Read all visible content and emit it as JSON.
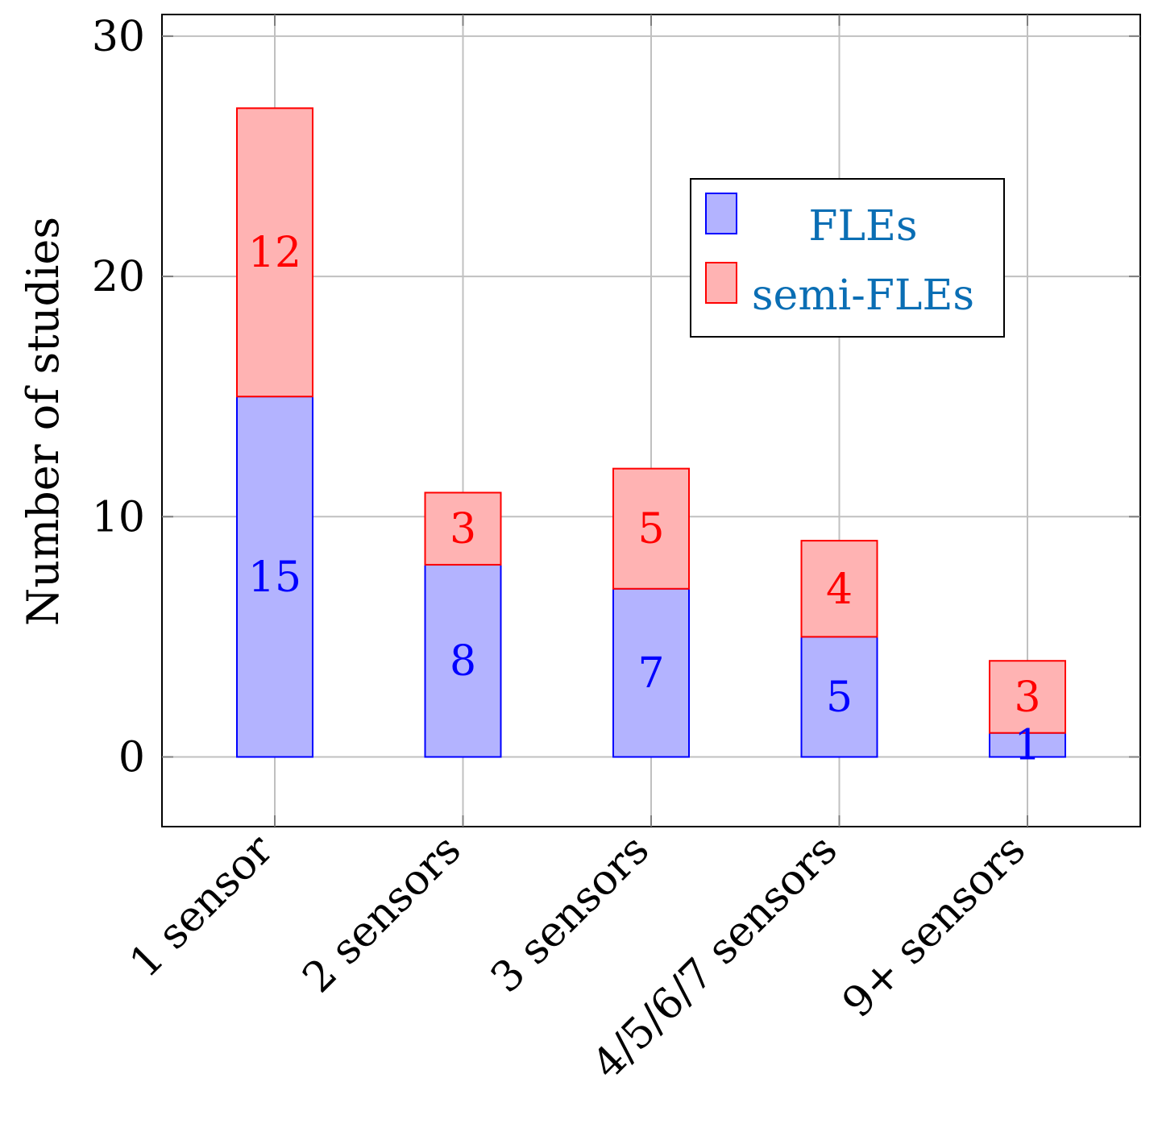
{
  "chart_data": {
    "type": "bar",
    "stacked": true,
    "categories": [
      "1 sensor",
      "2 sensors",
      "3 sensors",
      "4/5/6/7 sensors",
      "9+ sensors"
    ],
    "series": [
      {
        "name": "FLEs",
        "values": [
          15,
          8,
          7,
          5,
          1
        ],
        "fill": "#b3b3ff",
        "stroke": "#0000ff",
        "label_color": "#0000ff"
      },
      {
        "name": "semi-FLEs",
        "values": [
          12,
          3,
          5,
          4,
          3
        ],
        "fill": "#ffb3b3",
        "stroke": "#ff0000",
        "label_color": "#ff0000"
      }
    ],
    "xlabel": "",
    "ylabel": "Number of studies",
    "ylim": [
      -2.9,
      30.9
    ],
    "yticks": [
      "0",
      "10",
      "20",
      "30"
    ],
    "grid": true,
    "legend_position": "top-right",
    "legend_text_color": "#0a6eb4"
  }
}
